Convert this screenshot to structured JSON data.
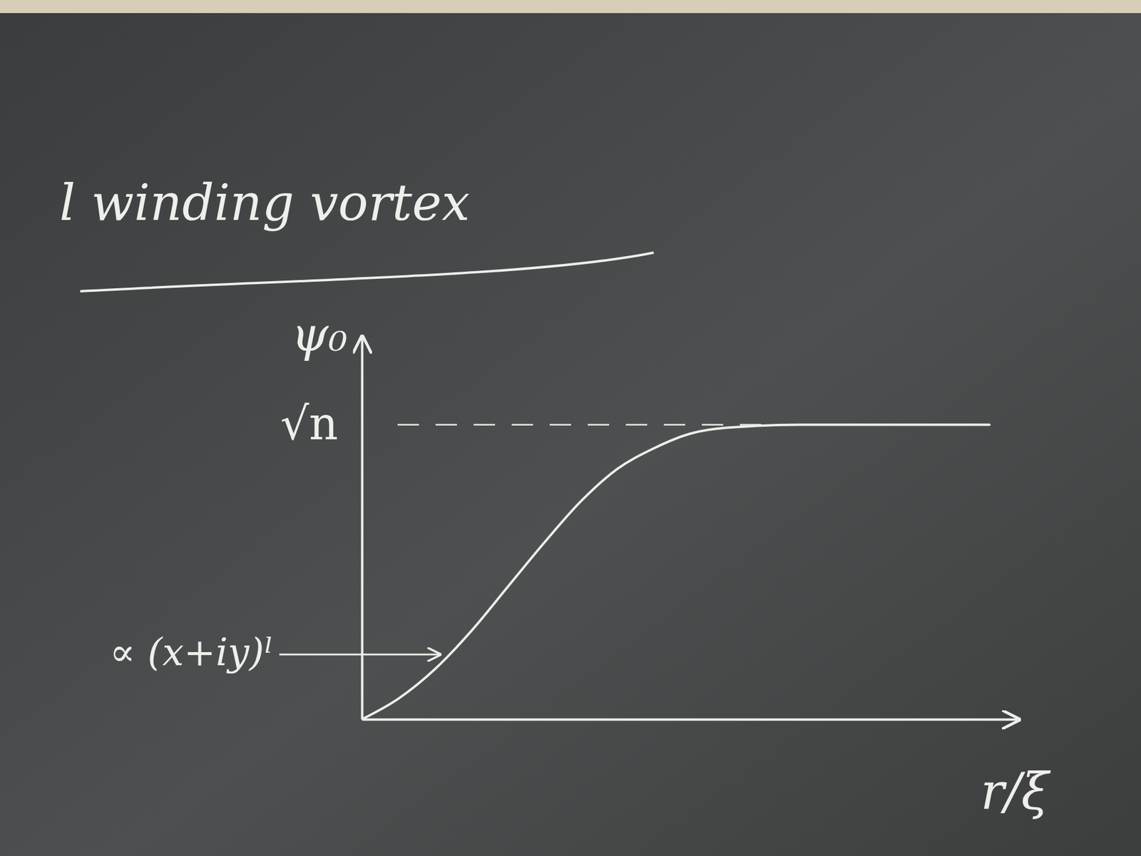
{
  "chart_data": {
    "type": "line",
    "title": "l winding vortex",
    "x_label": "r/ξ",
    "y_label": "ψ₀",
    "x": [
      0,
      0.5,
      1,
      1.5,
      2,
      2.5,
      3,
      3.5,
      4,
      4.5,
      5,
      6,
      7,
      8.6
    ],
    "values": [
      0,
      0.07,
      0.17,
      0.3,
      0.45,
      0.6,
      0.74,
      0.85,
      0.92,
      0.97,
      0.99,
      1,
      1,
      1
    ],
    "xlim": [
      0,
      9
    ],
    "ylim": [
      0,
      1.3
    ],
    "yticks": [
      {
        "value": 1,
        "label": "√n"
      }
    ],
    "grid": true,
    "tick_labels": "y",
    "annotations": [
      {
        "text": "∝ (x+iy)ˡ",
        "x": 1.15,
        "y": 0.22
      }
    ]
  }
}
